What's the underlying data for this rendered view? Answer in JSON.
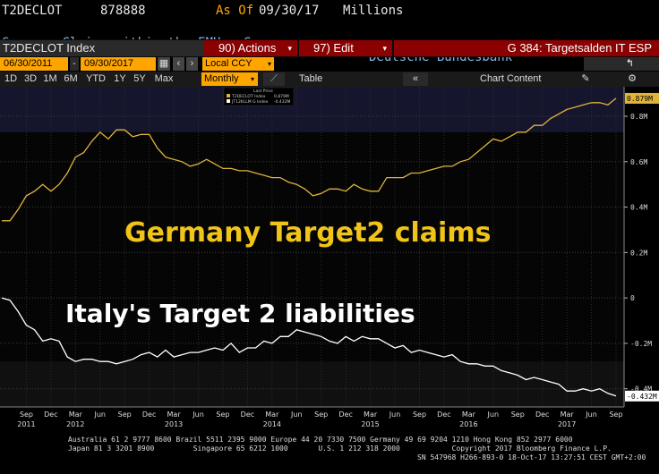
{
  "header": {
    "ticker": "T2DECLOT",
    "code": "878888",
    "asof_label": "As Of",
    "asof_date": "09/30/17",
    "units": "Millions",
    "description": "Germany Claims within the EMU - Currenc...",
    "source": "Deutsche Bundesbank"
  },
  "toolbar": {
    "index_label": "T2DECLOT Index",
    "actions_label": "90) Actions",
    "edit_label": "97) Edit",
    "page_label": "G 384: Targetsalden IT ESP"
  },
  "controls": {
    "start_date": "06/30/2011",
    "end_date": "09/30/2017",
    "currency": "Local CCY"
  },
  "tabs": {
    "ranges": [
      "1D",
      "3D",
      "1M",
      "6M",
      "YTD",
      "1Y",
      "5Y",
      "Max"
    ],
    "period": "Monthly",
    "table": "Table",
    "chart_content": "Chart Content"
  },
  "legend": {
    "title": "Last Price",
    "series1": "T2DECLOT Index",
    "series1_value": "0.879M",
    "series2": "JT12KLLM G Index",
    "series2_value": "-0.432M"
  },
  "annotations": {
    "germany": "Germany Target2 claims",
    "italy": "Italy's Target 2 liabilities"
  },
  "footer": {
    "line1": "Australia 61 2 9777 8600 Brazil 5511 2395 9000 Europe 44 20 7330 7500 Germany 49 69 9204 1210 Hong Kong 852 2977 6000",
    "line2": "Japan 81 3 3201 8900         Singapore 65 6212 1000       U.S. 1 212 318 2000            Copyright 2017 Bloomberg Finance L.P.",
    "line3": "SN 547968 H266-893-0 18-Oct-17 13:27:51 CEST GMT+2:00"
  },
  "colors": {
    "germany": "#e0b43a",
    "italy": "#ffffff",
    "red_bar": "#8b0000",
    "orange_text": "#ffa500",
    "blue_text": "#86b7e6"
  },
  "chart_data": {
    "type": "line",
    "yticks": [
      "0.8M",
      "0.6M",
      "0.4M",
      "0.2M",
      "0",
      "-0.2M",
      "-0.4M"
    ],
    "ylim": [
      -0.48,
      0.93
    ],
    "x_month_labels": [
      "Sep",
      "Dec",
      "Mar",
      "Jun",
      "Sep",
      "Dec",
      "Mar",
      "Jun",
      "Sep",
      "Dec",
      "Mar",
      "Jun",
      "Sep",
      "Dec",
      "Mar",
      "Jun",
      "Sep",
      "Dec",
      "Mar",
      "Jun",
      "Sep",
      "Dec",
      "Mar",
      "Jun",
      "Sep"
    ],
    "x_year_labels": [
      "2011",
      "2012",
      "2013",
      "2014",
      "2015",
      "2016",
      "2017"
    ],
    "dates": [
      "2011-06",
      "2011-07",
      "2011-08",
      "2011-09",
      "2011-10",
      "2011-11",
      "2011-12",
      "2012-01",
      "2012-02",
      "2012-03",
      "2012-04",
      "2012-05",
      "2012-06",
      "2012-07",
      "2012-08",
      "2012-09",
      "2012-10",
      "2012-11",
      "2012-12",
      "2013-01",
      "2013-02",
      "2013-03",
      "2013-04",
      "2013-05",
      "2013-06",
      "2013-07",
      "2013-08",
      "2013-09",
      "2013-10",
      "2013-11",
      "2013-12",
      "2014-01",
      "2014-02",
      "2014-03",
      "2014-04",
      "2014-05",
      "2014-06",
      "2014-07",
      "2014-08",
      "2014-09",
      "2014-10",
      "2014-11",
      "2014-12",
      "2015-01",
      "2015-02",
      "2015-03",
      "2015-04",
      "2015-05",
      "2015-06",
      "2015-07",
      "2015-08",
      "2015-09",
      "2015-10",
      "2015-11",
      "2015-12",
      "2016-01",
      "2016-02",
      "2016-03",
      "2016-04",
      "2016-05",
      "2016-06",
      "2016-07",
      "2016-08",
      "2016-09",
      "2016-10",
      "2016-11",
      "2016-12",
      "2017-01",
      "2017-02",
      "2017-03",
      "2017-04",
      "2017-05",
      "2017-06",
      "2017-07",
      "2017-08",
      "2017-09"
    ],
    "series": [
      {
        "name": "T2DECLOT Index",
        "color": "#e0b43a",
        "values": [
          0.34,
          0.34,
          0.39,
          0.45,
          0.47,
          0.5,
          0.47,
          0.5,
          0.55,
          0.62,
          0.64,
          0.69,
          0.73,
          0.7,
          0.74,
          0.74,
          0.71,
          0.72,
          0.72,
          0.66,
          0.62,
          0.61,
          0.6,
          0.58,
          0.59,
          0.61,
          0.59,
          0.57,
          0.57,
          0.56,
          0.56,
          0.55,
          0.54,
          0.53,
          0.53,
          0.51,
          0.5,
          0.48,
          0.45,
          0.46,
          0.48,
          0.48,
          0.47,
          0.5,
          0.48,
          0.47,
          0.47,
          0.53,
          0.53,
          0.53,
          0.55,
          0.55,
          0.56,
          0.57,
          0.58,
          0.58,
          0.6,
          0.61,
          0.64,
          0.67,
          0.7,
          0.69,
          0.71,
          0.73,
          0.73,
          0.76,
          0.76,
          0.79,
          0.81,
          0.83,
          0.84,
          0.85,
          0.86,
          0.86,
          0.85,
          0.879
        ]
      },
      {
        "name": "JT12KLLM G Index",
        "color": "#ffffff",
        "values": [
          0.0,
          -0.01,
          -0.06,
          -0.12,
          -0.14,
          -0.19,
          -0.18,
          -0.19,
          -0.26,
          -0.28,
          -0.27,
          -0.27,
          -0.28,
          -0.28,
          -0.29,
          -0.28,
          -0.27,
          -0.25,
          -0.24,
          -0.26,
          -0.23,
          -0.26,
          -0.25,
          -0.24,
          -0.24,
          -0.23,
          -0.22,
          -0.23,
          -0.2,
          -0.24,
          -0.22,
          -0.22,
          -0.19,
          -0.2,
          -0.17,
          -0.17,
          -0.14,
          -0.15,
          -0.16,
          -0.17,
          -0.19,
          -0.2,
          -0.17,
          -0.19,
          -0.17,
          -0.18,
          -0.18,
          -0.2,
          -0.22,
          -0.21,
          -0.24,
          -0.23,
          -0.24,
          -0.25,
          -0.26,
          -0.25,
          -0.28,
          -0.29,
          -0.29,
          -0.3,
          -0.3,
          -0.32,
          -0.33,
          -0.34,
          -0.36,
          -0.35,
          -0.36,
          -0.37,
          -0.38,
          -0.41,
          -0.41,
          -0.4,
          -0.41,
          -0.4,
          -0.42,
          -0.432
        ]
      }
    ]
  }
}
